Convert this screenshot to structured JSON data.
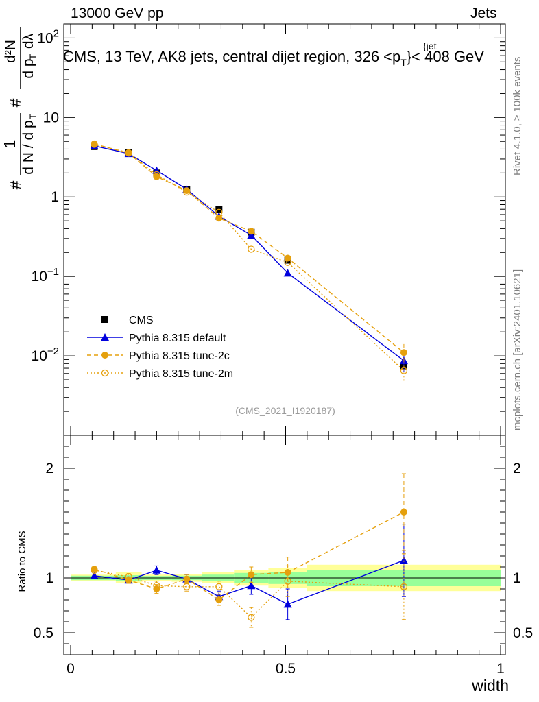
{
  "header": {
    "energy_label": "13000 GeV pp",
    "process_label": "Jets"
  },
  "side_text": {
    "rivet": "Rivet 4.1.0, ≥ 100k events",
    "mcplots": "mcplots.cern.ch [arXiv:2401.10621]"
  },
  "chart_data": {
    "type": "line",
    "title": "CMS, 13 TeV, AK8 jets, central dijet region, 326 < p_T^{jet} < 408 GeV",
    "title_parts": {
      "prefix": "CMS, 13 TeV, AK8 jets, central dijet region, 326 <p",
      "superscript": "{jet",
      "subscript": "T",
      "suffix": "}< 408 GeV"
    },
    "ylabel_main_parts": [
      "#",
      "1",
      "d N / d p",
      "T",
      "#",
      "d p",
      "T",
      "d²N",
      "dλ"
    ],
    "ylabel_ratio": "Ratio to CMS",
    "xlabel": "width",
    "analysis_id": "(CMS_2021_I1920187)",
    "xlim": [
      0,
      1
    ],
    "main_ylim_log": [
      0.001,
      150
    ],
    "ratio_ylim": [
      0.3,
      2.3
    ],
    "x_ticks": [
      0,
      0.5,
      1
    ],
    "x_tick_labels": [
      "0",
      "0.5",
      "1"
    ],
    "main_y_ticks": [
      0.01,
      0.1,
      1,
      10,
      100
    ],
    "main_y_tick_labels": [
      {
        "base": "10",
        "exp": "−2"
      },
      {
        "base": "10",
        "exp": "−1"
      },
      {
        "base": "1",
        "exp": ""
      },
      {
        "base": "10",
        "exp": ""
      },
      {
        "base": "10",
        "exp": "2"
      }
    ],
    "ratio_y_ticks": [
      0.5,
      1,
      2
    ],
    "ratio_y_tick_labels": [
      "0.5",
      "1",
      "2"
    ],
    "bins": [
      {
        "x": 0.055,
        "lo": 0.0,
        "hi": 0.105
      },
      {
        "x": 0.135,
        "lo": 0.105,
        "hi": 0.165
      },
      {
        "x": 0.2,
        "lo": 0.165,
        "hi": 0.235
      },
      {
        "x": 0.27,
        "lo": 0.235,
        "hi": 0.305
      },
      {
        "x": 0.345,
        "lo": 0.305,
        "hi": 0.38
      },
      {
        "x": 0.42,
        "lo": 0.38,
        "hi": 0.46
      },
      {
        "x": 0.505,
        "lo": 0.46,
        "hi": 0.55
      },
      {
        "x": 0.775,
        "lo": 0.55,
        "hi": 1.0
      }
    ],
    "ratio_band": {
      "stat_half": [
        0.02,
        0.025,
        0.018,
        0.02,
        0.03,
        0.045,
        0.055,
        0.075
      ],
      "total_half": [
        0.03,
        0.05,
        0.03,
        0.035,
        0.05,
        0.07,
        0.09,
        0.12
      ]
    },
    "series": [
      {
        "name": "CMS",
        "color": "#000000",
        "marker": "square",
        "line": "none",
        "values": [
          4.3,
          3.6,
          2.0,
          1.25,
          0.7,
          0.36,
          0.16,
          0.0075
        ],
        "ratio": [
          1,
          1,
          1,
          1,
          1,
          1,
          1,
          1
        ]
      },
      {
        "name": "Pythia 8.315 default",
        "color": "#0000dd",
        "marker": "triangle",
        "line": "solid",
        "values": [
          4.4,
          3.5,
          2.15,
          1.25,
          0.57,
          0.33,
          0.11,
          0.0087
        ],
        "ratio": [
          1.02,
          0.98,
          1.07,
          0.99,
          0.83,
          0.93,
          0.76,
          1.16
        ],
        "ratio_err": [
          0.015,
          0.03,
          0.04,
          0.04,
          0.05,
          0.08,
          0.14,
          0.33
        ]
      },
      {
        "name": "Pythia 8.315 tune-2c",
        "color": "#e5a00d",
        "marker": "circle-filled",
        "line": "dashed",
        "values": [
          4.65,
          3.55,
          1.8,
          1.2,
          0.54,
          0.37,
          0.17,
          0.011
        ],
        "ratio": [
          1.08,
          0.98,
          0.9,
          0.99,
          0.8,
          1.03,
          1.05,
          1.6
        ],
        "ratio_err": [
          0.015,
          0.03,
          0.04,
          0.04,
          0.05,
          0.07,
          0.14,
          0.35
        ]
      },
      {
        "name": "Pythia 8.315 tune-2m",
        "color": "#e5a00d",
        "marker": "circle-open",
        "line": "dotted",
        "values": [
          4.6,
          3.6,
          1.9,
          1.15,
          0.64,
          0.22,
          0.15,
          0.0065
        ],
        "ratio": [
          1.07,
          1.01,
          0.93,
          0.92,
          0.92,
          0.64,
          0.97,
          0.92
        ],
        "ratio_err": [
          0.015,
          0.03,
          0.04,
          0.04,
          0.05,
          0.09,
          0.14,
          0.3
        ]
      }
    ]
  }
}
